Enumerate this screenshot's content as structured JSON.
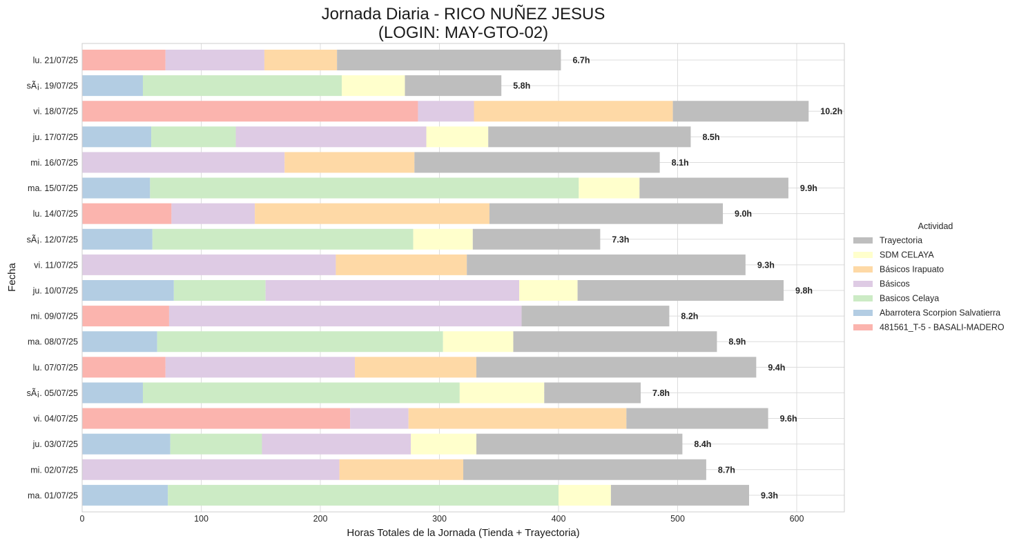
{
  "chart_data": {
    "type": "bar",
    "orientation": "horizontal",
    "stacked": true,
    "title": "Jornada Diaria - RICO NUÑEZ JESUS",
    "subtitle": "(LOGIN: MAY-GTO-02)",
    "xlabel": "Horas Totales de la Jornada (Tienda + Trayectoria)",
    "ylabel": "Fecha",
    "xlim": [
      0,
      640
    ],
    "xticks": [
      0,
      100,
      200,
      300,
      400,
      500,
      600
    ],
    "grid": true,
    "legend_position": "right",
    "legend_title": "Actividad",
    "categories": [
      "lu. 21/07/25",
      "sÃ¡. 19/07/25",
      "vi. 18/07/25",
      "ju. 17/07/25",
      "mi. 16/07/25",
      "ma. 15/07/25",
      "lu. 14/07/25",
      "sÃ¡. 12/07/25",
      "vi. 11/07/25",
      "ju. 10/07/25",
      "mi. 09/07/25",
      "ma. 08/07/25",
      "lu. 07/07/25",
      "sÃ¡. 05/07/25",
      "vi. 04/07/25",
      "ju. 03/07/25",
      "mi. 02/07/25",
      "ma. 01/07/25"
    ],
    "totals": [
      "6.7h",
      "5.8h",
      "10.2h",
      "8.5h",
      "8.1h",
      "9.9h",
      "9.0h",
      "7.3h",
      "9.3h",
      "9.8h",
      "8.2h",
      "8.9h",
      "9.4h",
      "7.8h",
      "9.6h",
      "8.4h",
      "8.7h",
      "9.3h"
    ],
    "series": [
      {
        "name": "481561_T-5 - BASALI-MADERO",
        "color": "#fbb4ae",
        "values": [
          70,
          0,
          282,
          0,
          0,
          0,
          75,
          0,
          0,
          0,
          73,
          0,
          70,
          0,
          225,
          0,
          0,
          0
        ]
      },
      {
        "name": "Abarrotera Scorpion Salvatierra",
        "color": "#b3cde3",
        "values": [
          0,
          51,
          0,
          58,
          0,
          57,
          0,
          59,
          0,
          77,
          0,
          63,
          0,
          51,
          0,
          74,
          0,
          72
        ]
      },
      {
        "name": "Basicos Celaya",
        "color": "#ccebc5",
        "values": [
          0,
          167,
          0,
          71,
          0,
          360,
          0,
          219,
          0,
          77,
          0,
          240,
          0,
          266,
          0,
          77,
          0,
          328
        ]
      },
      {
        "name": "Básicos",
        "color": "#decbe4",
        "values": [
          83,
          0,
          47,
          160,
          170,
          0,
          70,
          0,
          213,
          213,
          296,
          0,
          159,
          0,
          49,
          125,
          216,
          0
        ]
      },
      {
        "name": "Básicos Irapuato",
        "color": "#fed9a6",
        "values": [
          61,
          0,
          167,
          0,
          109,
          0,
          197,
          0,
          110,
          0,
          0,
          0,
          102,
          0,
          183,
          0,
          104,
          0
        ]
      },
      {
        "name": "SDM CELAYA",
        "color": "#ffffcc",
        "values": [
          0,
          53,
          0,
          52,
          0,
          51,
          0,
          50,
          0,
          49,
          0,
          59,
          0,
          71,
          0,
          55,
          0,
          44
        ]
      },
      {
        "name": "Trayectoria",
        "color": "#bebebe",
        "values": [
          188,
          81,
          114,
          170,
          206,
          125,
          196,
          107,
          234,
          173,
          124,
          171,
          235,
          81,
          119,
          173,
          204,
          116
        ]
      }
    ]
  }
}
